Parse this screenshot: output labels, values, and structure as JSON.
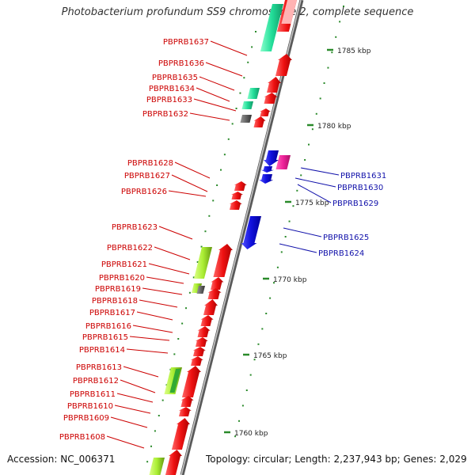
{
  "title": "Photobacterium profundum SS9 chromosome 2, complete sequence",
  "footer": {
    "accession": "Accession: NC_006371",
    "summary": "Topology: circular; Length: 2,237,943 bp; Genes: 2,029"
  },
  "kbp_labels": [
    "1785 kbp",
    "1780 kbp",
    "1775 kbp",
    "1770 kbp",
    "1765 kbp",
    "1760 kbp"
  ],
  "left_genes": [
    "PBPRB1637",
    "PBPRB1636",
    "PBPRB1635",
    "PBPRB1634",
    "PBPRB1633",
    "PBPRB1632",
    "PBPRB1628",
    "PBPRB1627",
    "PBPRB1626",
    "PBPRB1623",
    "PBPRB1622",
    "PBPRB1621",
    "PBPRB1620",
    "PBPRB1619",
    "PBPRB1618",
    "PBPRB1617",
    "PBPRB1616",
    "PBPRB1615",
    "PBPRB1614",
    "PBPRB1613",
    "PBPRB1612",
    "PBPRB1611",
    "PBPRB1610",
    "PBPRB1609",
    "PBPRB1608"
  ],
  "right_genes": [
    "PBPRB1631",
    "PBPRB1630",
    "PBPRB1629",
    "PBPRB1625",
    "PBPRB1624"
  ],
  "colors": {
    "forward": "#ee1111",
    "reverse": "#1111dd",
    "left_label": "#cc0000",
    "right_label": "#1111aa",
    "tick": "#2a8a2a",
    "backbone": "#8a8a8a",
    "teal": "#22dd99",
    "lime": "#aaee33",
    "magenta": "#ee2299",
    "grey": "#555555"
  }
}
